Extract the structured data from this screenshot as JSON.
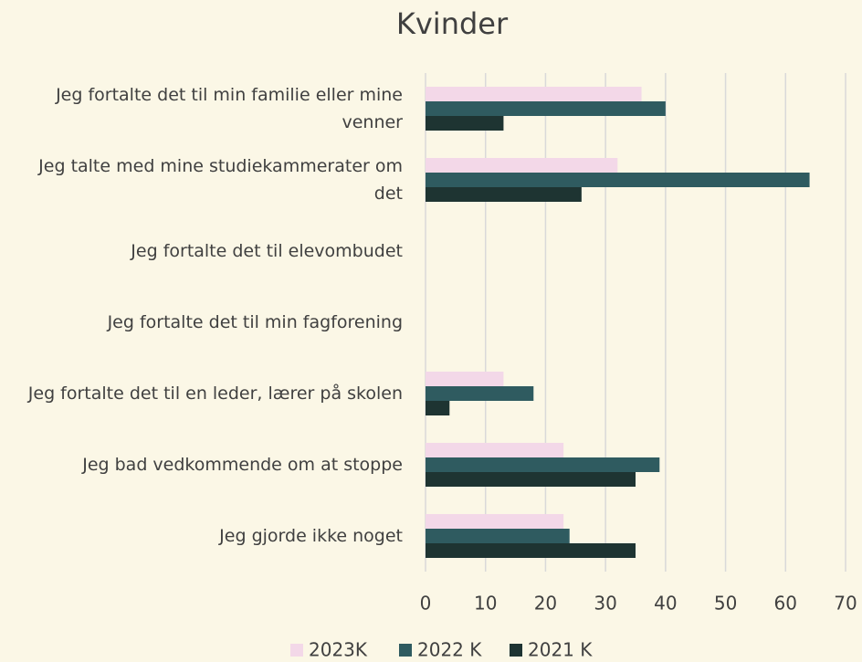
{
  "chart_data": {
    "type": "bar",
    "orientation": "horizontal",
    "title": "Kvinder",
    "categories": [
      "Jeg fortalte det til min familie eller mine venner",
      "Jeg talte med mine studiekammerater om det",
      "Jeg fortalte det til elevombudet",
      "Jeg fortalte det til min fagforening",
      "Jeg fortalte det til en leder, lærer på skolen",
      "Jeg bad vedkommende om at stoppe",
      "Jeg gjorde ikke noget"
    ],
    "series": [
      {
        "name": "2023K",
        "color": "#f3d8e8",
        "values": [
          36,
          32,
          0,
          0,
          13,
          23,
          23
        ]
      },
      {
        "name": "2022 K",
        "color": "#2f5b60",
        "values": [
          40,
          64,
          0,
          0,
          18,
          39,
          24
        ]
      },
      {
        "name": "2021 K",
        "color": "#1e3432",
        "values": [
          13,
          26,
          0,
          0,
          4,
          35,
          35
        ]
      }
    ],
    "xlim": [
      0,
      70
    ],
    "xticks": [
      0,
      10,
      20,
      30,
      40,
      50,
      60,
      70
    ],
    "grid": true,
    "legend": "bottom"
  }
}
